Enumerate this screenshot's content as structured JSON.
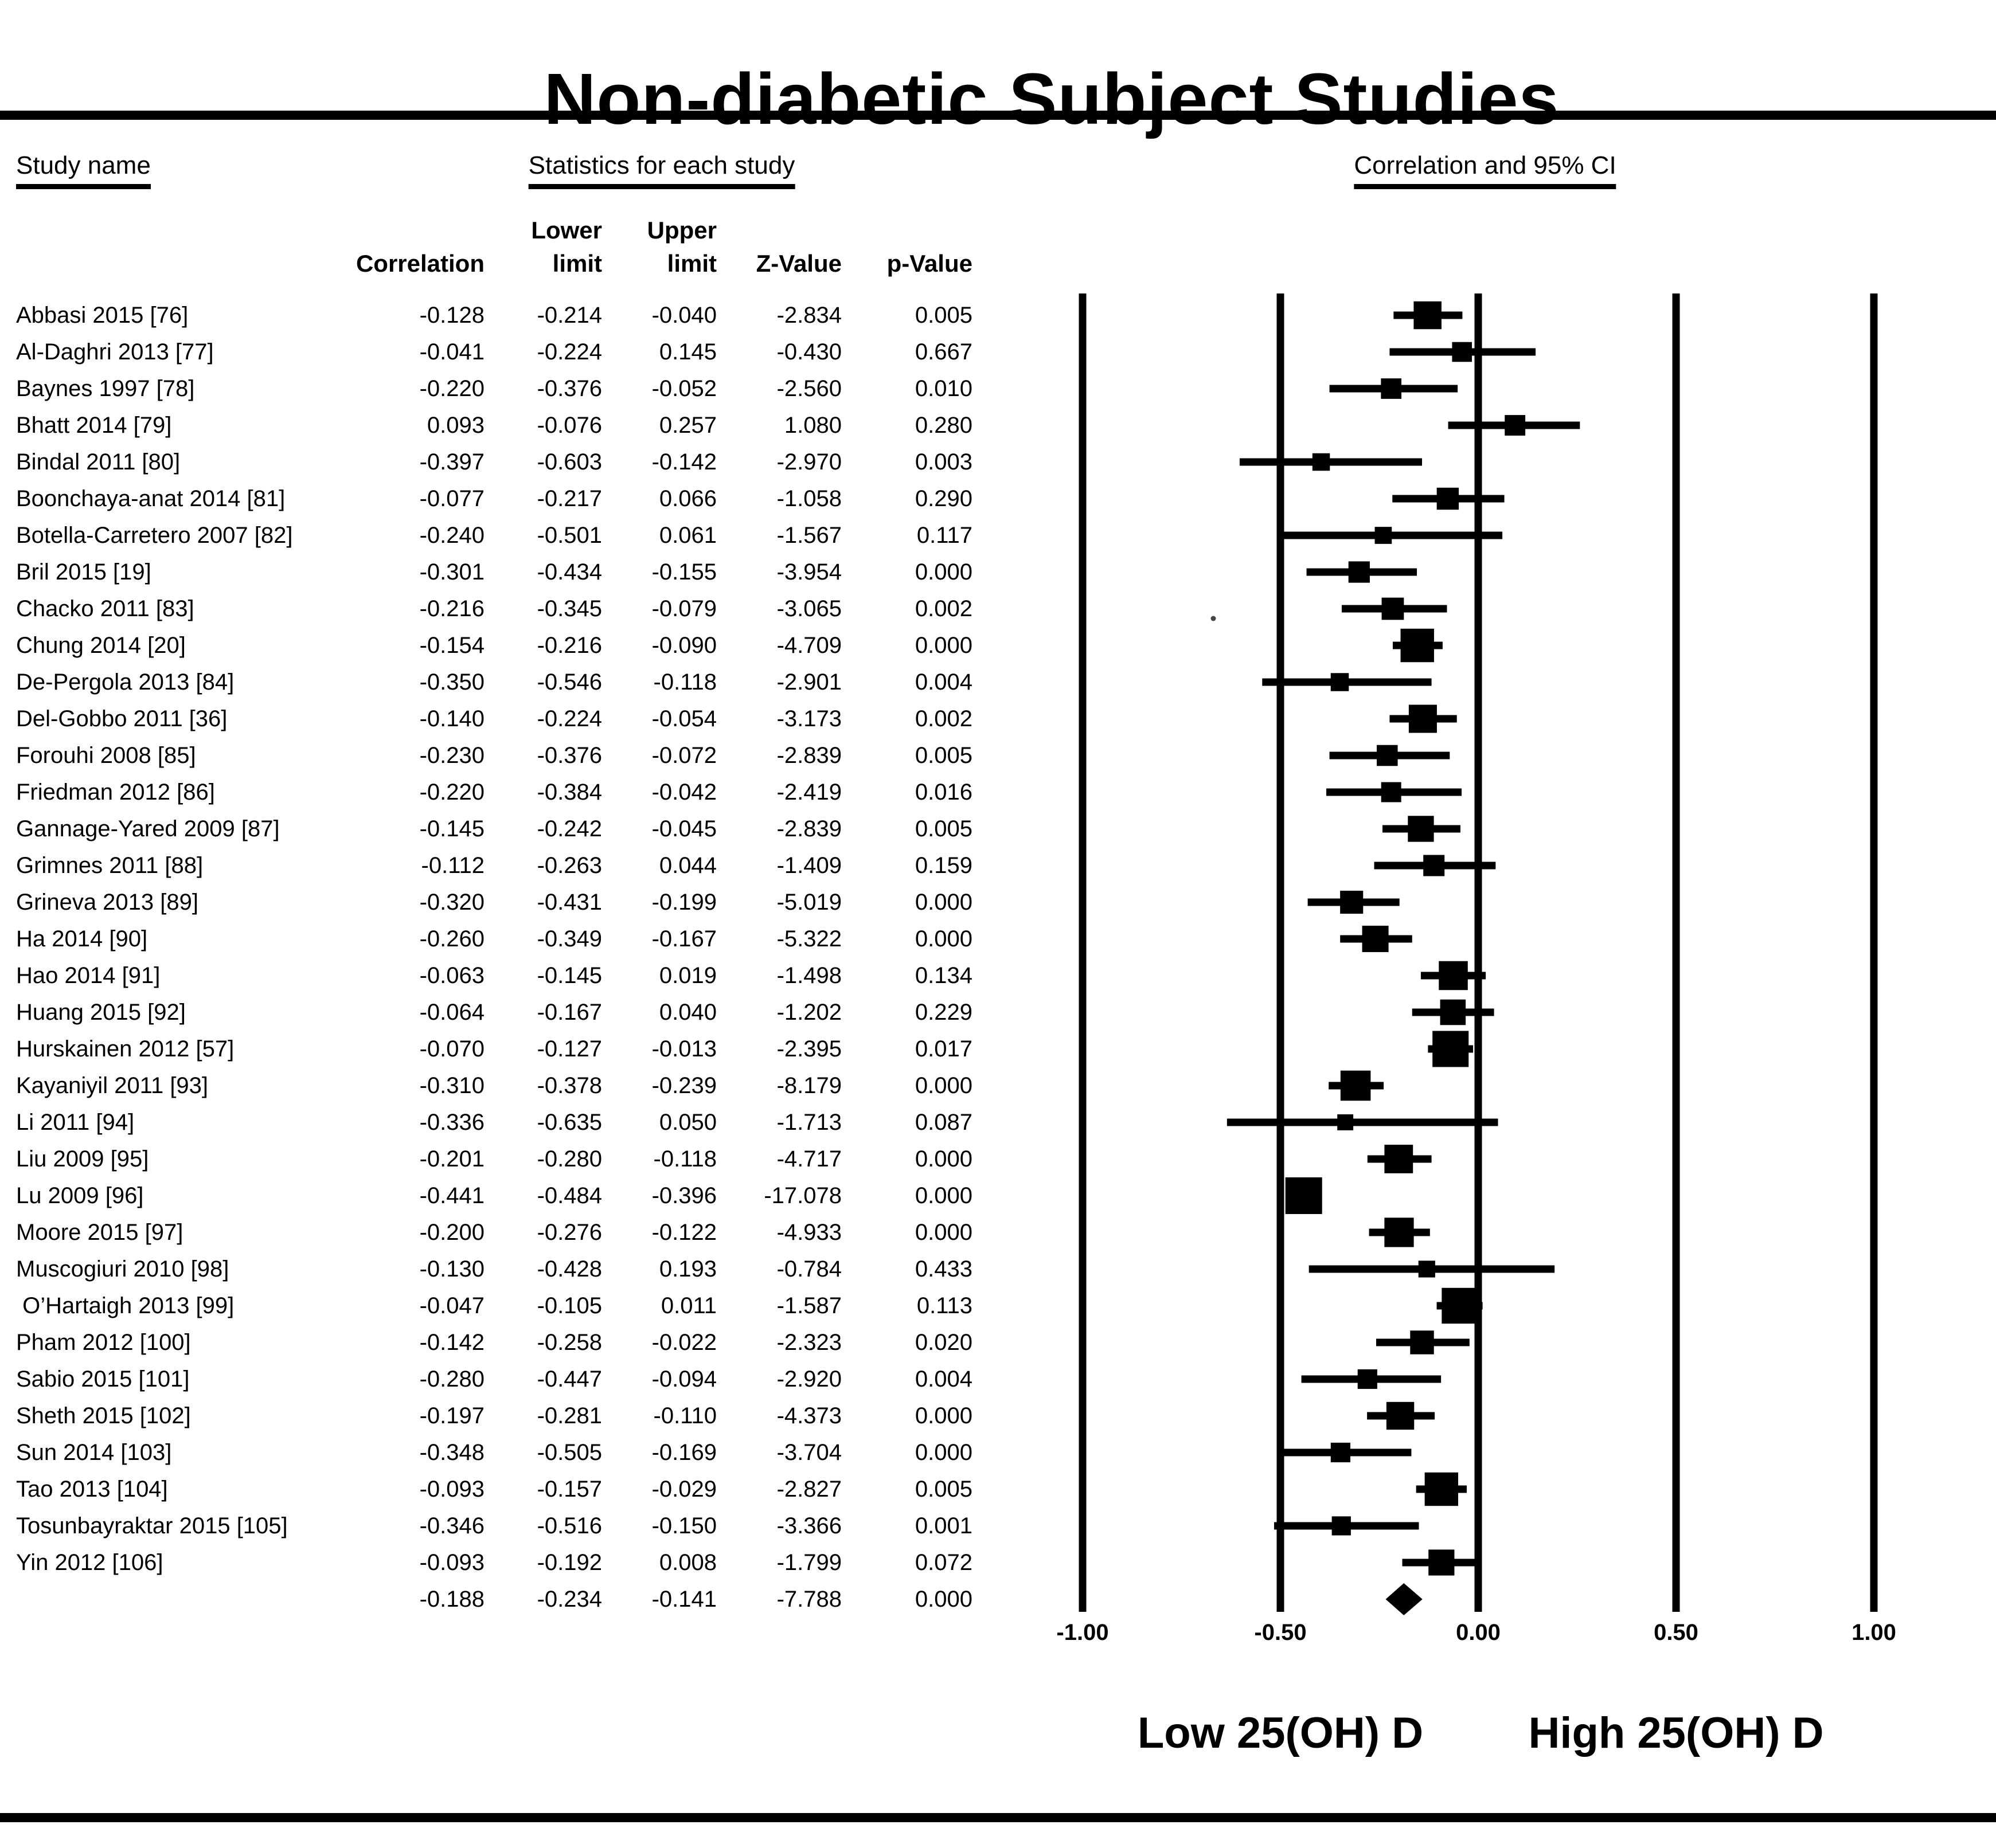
{
  "title": "Non-diabetic Subject Studies",
  "section_headers": {
    "study": "Study name",
    "stats": "Statistics for each study",
    "plot": "Correlation and 95% CI"
  },
  "columns": {
    "lower_top": "Lower",
    "upper_top": "Upper",
    "correlation": "Correlation",
    "lower_bottom": "limit",
    "upper_bottom": "limit",
    "z": "Z-Value",
    "p": "p-Value"
  },
  "axis": {
    "ticks": [
      "-1.00",
      "-0.50",
      "0.00",
      "0.50",
      "1.00"
    ],
    "values": [
      -1.0,
      -0.5,
      0.0,
      0.5,
      1.0
    ]
  },
  "footer": {
    "low_label": "Low 25(OH) D",
    "high_label": "High 25(OH) D"
  },
  "colors": {
    "ink": "#000000",
    "background": "#ffffff",
    "artifact_dot": "#444444"
  },
  "chart_data": {
    "type": "scatter",
    "subtype": "forest_plot",
    "title": "Non-diabetic Subject Studies",
    "effect_measure": "correlation",
    "x_axis": {
      "range": [
        -1.0,
        1.0
      ],
      "ticks": [
        -1.0,
        -0.5,
        0.0,
        0.5,
        1.0
      ],
      "gridlines": true
    },
    "plot_footer_left": "Low 25(OH) D",
    "plot_footer_right": "High 25(OH) D",
    "studies": [
      {
        "name": "Abbasi 2015 [76]",
        "correlation": "-0.128",
        "lower": "-0.214",
        "upper": "-0.040",
        "z": "-2.834",
        "p": "0.005"
      },
      {
        "name": "Al-Daghri 2013 [77]",
        "correlation": "-0.041",
        "lower": "-0.224",
        "upper": "0.145",
        "z": "-0.430",
        "p": "0.667"
      },
      {
        "name": "Baynes 1997 [78]",
        "correlation": "-0.220",
        "lower": "-0.376",
        "upper": "-0.052",
        "z": "-2.560",
        "p": "0.010"
      },
      {
        "name": "Bhatt 2014 [79]",
        "correlation": "0.093",
        "lower": "-0.076",
        "upper": "0.257",
        "z": "1.080",
        "p": "0.280"
      },
      {
        "name": "Bindal 2011 [80]",
        "correlation": "-0.397",
        "lower": "-0.603",
        "upper": "-0.142",
        "z": "-2.970",
        "p": "0.003"
      },
      {
        "name": "Boonchaya-anat 2014 [81]",
        "correlation": "-0.077",
        "lower": "-0.217",
        "upper": "0.066",
        "z": "-1.058",
        "p": "0.290"
      },
      {
        "name": "Botella-Carretero 2007 [82]",
        "correlation": "-0.240",
        "lower": "-0.501",
        "upper": "0.061",
        "z": "-1.567",
        "p": "0.117"
      },
      {
        "name": "Bril 2015 [19]",
        "correlation": "-0.301",
        "lower": "-0.434",
        "upper": "-0.155",
        "z": "-3.954",
        "p": "0.000"
      },
      {
        "name": "Chacko 2011 [83]",
        "correlation": "-0.216",
        "lower": "-0.345",
        "upper": "-0.079",
        "z": "-3.065",
        "p": "0.002"
      },
      {
        "name": "Chung 2014 [20]",
        "correlation": "-0.154",
        "lower": "-0.216",
        "upper": "-0.090",
        "z": "-4.709",
        "p": "0.000"
      },
      {
        "name": "De-Pergola 2013 [84]",
        "correlation": "-0.350",
        "lower": "-0.546",
        "upper": "-0.118",
        "z": "-2.901",
        "p": "0.004"
      },
      {
        "name": "Del-Gobbo 2011 [36]",
        "correlation": "-0.140",
        "lower": "-0.224",
        "upper": "-0.054",
        "z": "-3.173",
        "p": "0.002"
      },
      {
        "name": "Forouhi 2008 [85]",
        "correlation": "-0.230",
        "lower": "-0.376",
        "upper": "-0.072",
        "z": "-2.839",
        "p": "0.005"
      },
      {
        "name": "Friedman 2012 [86]",
        "correlation": "-0.220",
        "lower": "-0.384",
        "upper": "-0.042",
        "z": "-2.419",
        "p": "0.016"
      },
      {
        "name": "Gannage-Yared 2009 [87]",
        "correlation": "-0.145",
        "lower": "-0.242",
        "upper": "-0.045",
        "z": "-2.839",
        "p": "0.005"
      },
      {
        "name": "Grimnes 2011 [88]",
        "correlation": "-0.112",
        "lower": "-0.263",
        "upper": "0.044",
        "z": "-1.409",
        "p": "0.159"
      },
      {
        "name": "Grineva 2013 [89]",
        "correlation": "-0.320",
        "lower": "-0.431",
        "upper": "-0.199",
        "z": "-5.019",
        "p": "0.000"
      },
      {
        "name": "Ha 2014 [90]",
        "correlation": "-0.260",
        "lower": "-0.349",
        "upper": "-0.167",
        "z": "-5.322",
        "p": "0.000"
      },
      {
        "name": "Hao 2014 [91]",
        "correlation": "-0.063",
        "lower": "-0.145",
        "upper": "0.019",
        "z": "-1.498",
        "p": "0.134"
      },
      {
        "name": "Huang 2015 [92]",
        "correlation": "-0.064",
        "lower": "-0.167",
        "upper": "0.040",
        "z": "-1.202",
        "p": "0.229"
      },
      {
        "name": "Hurskainen 2012 [57]",
        "correlation": "-0.070",
        "lower": "-0.127",
        "upper": "-0.013",
        "z": "-2.395",
        "p": "0.017"
      },
      {
        "name": "Kayaniyil 2011 [93]",
        "correlation": "-0.310",
        "lower": "-0.378",
        "upper": "-0.239",
        "z": "-8.179",
        "p": "0.000"
      },
      {
        "name": "Li 2011 [94]",
        "correlation": "-0.336",
        "lower": "-0.635",
        "upper": "0.050",
        "z": "-1.713",
        "p": "0.087"
      },
      {
        "name": "Liu 2009 [95]",
        "correlation": "-0.201",
        "lower": "-0.280",
        "upper": "-0.118",
        "z": "-4.717",
        "p": "0.000"
      },
      {
        "name": "Lu 2009 [96]",
        "correlation": "-0.441",
        "lower": "-0.484",
        "upper": "-0.396",
        "z": "-17.078",
        "p": "0.000"
      },
      {
        "name": "Moore 2015 [97]",
        "correlation": "-0.200",
        "lower": "-0.276",
        "upper": "-0.122",
        "z": "-4.933",
        "p": "0.000"
      },
      {
        "name": "Muscogiuri 2010 [98]",
        "correlation": "-0.130",
        "lower": "-0.428",
        "upper": "0.193",
        "z": "-0.784",
        "p": "0.433"
      },
      {
        "name": " O’Hartaigh 2013 [99]",
        "correlation": "-0.047",
        "lower": "-0.105",
        "upper": "0.011",
        "z": "-1.587",
        "p": "0.113"
      },
      {
        "name": "Pham 2012 [100]",
        "correlation": "-0.142",
        "lower": "-0.258",
        "upper": "-0.022",
        "z": "-2.323",
        "p": "0.020"
      },
      {
        "name": "Sabio 2015 [101]",
        "correlation": "-0.280",
        "lower": "-0.447",
        "upper": "-0.094",
        "z": "-2.920",
        "p": "0.004"
      },
      {
        "name": "Sheth 2015 [102]",
        "correlation": "-0.197",
        "lower": "-0.281",
        "upper": "-0.110",
        "z": "-4.373",
        "p": "0.000"
      },
      {
        "name": "Sun 2014 [103]",
        "correlation": "-0.348",
        "lower": "-0.505",
        "upper": "-0.169",
        "z": "-3.704",
        "p": "0.000"
      },
      {
        "name": "Tao 2013 [104]",
        "correlation": "-0.093",
        "lower": "-0.157",
        "upper": "-0.029",
        "z": "-2.827",
        "p": "0.005"
      },
      {
        "name": "Tosunbayraktar 2015 [105]",
        "correlation": "-0.346",
        "lower": "-0.516",
        "upper": "-0.150",
        "z": "-3.366",
        "p": "0.001"
      },
      {
        "name": "Yin 2012 [106]",
        "correlation": "-0.093",
        "lower": "-0.192",
        "upper": "0.008",
        "z": "-1.799",
        "p": "0.072"
      }
    ],
    "summary": {
      "name": "",
      "correlation": "-0.188",
      "lower": "-0.234",
      "upper": "-0.141",
      "z": "-7.788",
      "p": "0.000"
    }
  }
}
